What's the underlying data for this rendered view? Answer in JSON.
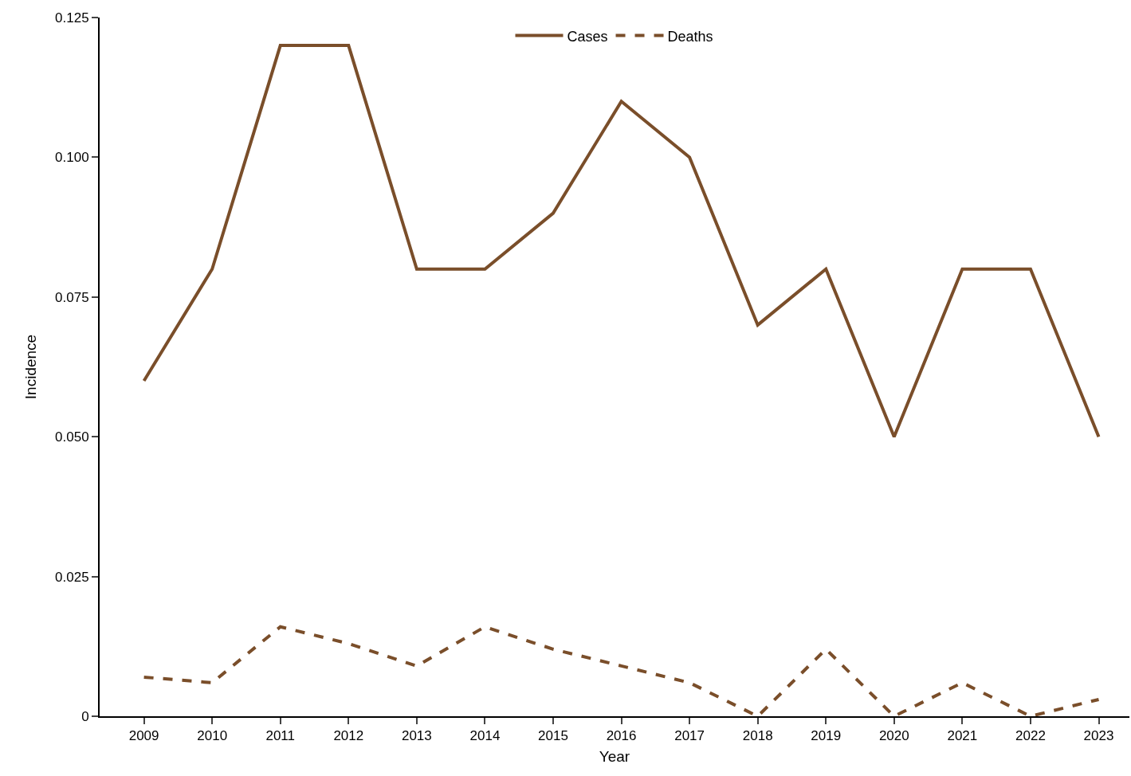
{
  "chart_data": {
    "type": "line",
    "xlabel": "Year",
    "ylabel": "Incidence",
    "categories": [
      "2009",
      "2010",
      "2011",
      "2012",
      "2013",
      "2014",
      "2015",
      "2016",
      "2017",
      "2018",
      "2019",
      "2020",
      "2021",
      "2022",
      "2023"
    ],
    "series": [
      {
        "name": "Cases",
        "color": "#7a4e2a",
        "line_style": "solid",
        "values": [
          0.06,
          0.08,
          0.12,
          0.12,
          0.08,
          0.08,
          0.09,
          0.11,
          0.1,
          0.07,
          0.08,
          0.05,
          0.08,
          0.08,
          0.05
        ]
      },
      {
        "name": "Deaths",
        "color": "#7a4e2a",
        "line_style": "dashed",
        "values": [
          0.007,
          0.006,
          0.016,
          0.013,
          0.009,
          0.016,
          0.012,
          0.009,
          0.006,
          0,
          0.012,
          0,
          0.006,
          0,
          0.003
        ]
      }
    ],
    "ylim": [
      0,
      0.125
    ],
    "yticks": [
      0,
      {
        "value": 0.025,
        "label": "0.025"
      },
      {
        "value": 0.05,
        "label": "0.050"
      },
      {
        "value": 0.075,
        "label": "0.075"
      },
      {
        "value": 0.1,
        "label": "0.100"
      },
      {
        "value": 0.125,
        "label": "0.125"
      }
    ],
    "legend": "top",
    "marker": "none"
  }
}
